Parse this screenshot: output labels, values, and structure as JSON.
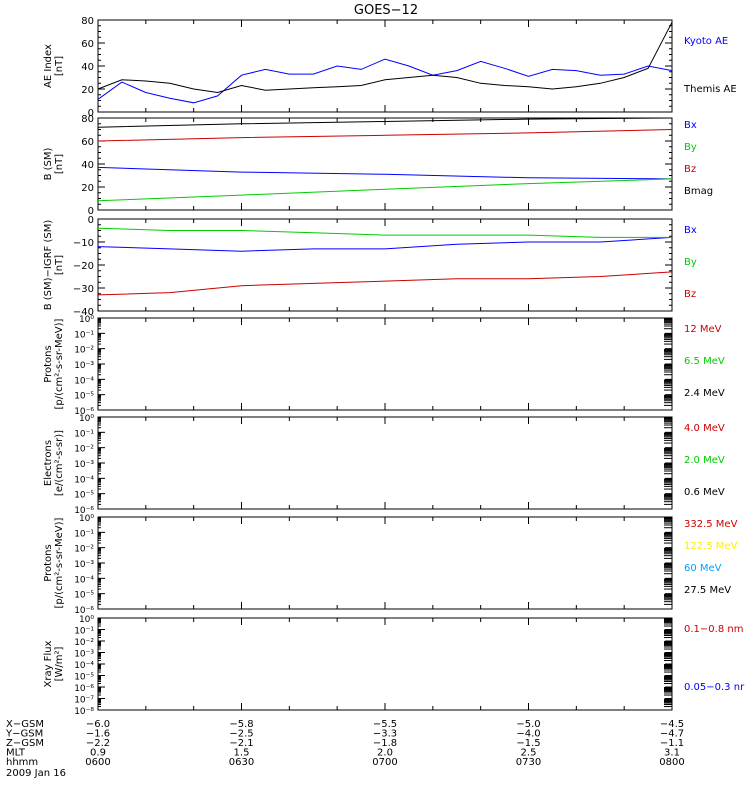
{
  "title": "GOES−12",
  "x_range": [
    "0600",
    "0800"
  ],
  "x_tick_labels": [
    "0600",
    "0630",
    "0700",
    "0730",
    "0800"
  ],
  "orbit_rows": [
    {
      "label": "X−GSM",
      "values": [
        "−6.0",
        "−5.8",
        "−5.5",
        "−5.0",
        "−4.5"
      ]
    },
    {
      "label": "Y−GSM",
      "values": [
        "−1.6",
        "−2.5",
        "−3.3",
        "−4.0",
        "−4.7"
      ]
    },
    {
      "label": "Z−GSM",
      "values": [
        "−2.2",
        "−2.1",
        "−1.8",
        "−1.5",
        "−1.1"
      ]
    },
    {
      "label": "MLT",
      "values": [
        "0.9",
        "1.5",
        "2.0",
        "2.5",
        "3.1"
      ]
    },
    {
      "label": "hhmm",
      "values": [
        "0600",
        "0630",
        "0700",
        "0730",
        "0800"
      ]
    }
  ],
  "date_label": "2009 Jan 16",
  "chart_data": [
    {
      "type": "line",
      "ylabel": [
        "AE Index",
        "[nT]"
      ],
      "ylim": [
        0,
        80
      ],
      "y_ticks": [
        0,
        20,
        40,
        60,
        80
      ],
      "x": [
        "0600",
        "0605",
        "0610",
        "0615",
        "0620",
        "0625",
        "0630",
        "0635",
        "0640",
        "0645",
        "0650",
        "0655",
        "0700",
        "0705",
        "0710",
        "0715",
        "0720",
        "0725",
        "0730",
        "0735",
        "0740",
        "0745",
        "0750",
        "0755",
        "0800"
      ],
      "series": [
        {
          "name": "Kyoto AE",
          "color": "#0000ff",
          "values": [
            11,
            26,
            17,
            12,
            8,
            14,
            32,
            37,
            33,
            33,
            40,
            37,
            46,
            40,
            32,
            36,
            44,
            38,
            31,
            37,
            36,
            32,
            33,
            40,
            36
          ]
        },
        {
          "name": "Themis AE",
          "color": "#000000",
          "values": [
            20,
            28,
            27,
            25,
            20,
            17,
            23,
            19,
            20,
            21,
            22,
            23,
            28,
            30,
            32,
            30,
            25,
            23,
            22,
            20,
            22,
            25,
            30,
            38,
            78
          ]
        }
      ]
    },
    {
      "type": "line",
      "ylabel": [
        "B (SM)",
        "[nT]"
      ],
      "ylim": [
        0,
        80
      ],
      "y_ticks": [
        0,
        20,
        40,
        60,
        80
      ],
      "x": [
        "0600",
        "0630",
        "0700",
        "0730",
        "0800"
      ],
      "series": [
        {
          "name": "Bx",
          "color": "#0000ff",
          "values": [
            37,
            33,
            31,
            28,
            27
          ]
        },
        {
          "name": "By",
          "color": "#00cc00",
          "values": [
            8,
            13,
            18,
            23,
            27
          ]
        },
        {
          "name": "Bz",
          "color": "#cc0000",
          "values": [
            60,
            63,
            65,
            67,
            70
          ]
        },
        {
          "name": "Bmag",
          "color": "#000000",
          "values": [
            72,
            75,
            77,
            79,
            81
          ]
        }
      ]
    },
    {
      "type": "line",
      "ylabel": [
        "B (SM)−IGRF (SM)",
        "[nT]"
      ],
      "ylim": [
        -40,
        0
      ],
      "y_ticks": [
        -40,
        -30,
        -20,
        -10,
        0
      ],
      "x": [
        "0600",
        "0615",
        "0630",
        "0645",
        "0700",
        "0715",
        "0730",
        "0745",
        "0800"
      ],
      "series": [
        {
          "name": "Bx",
          "color": "#0000ff",
          "values": [
            -12,
            -13,
            -14,
            -13,
            -13,
            -11,
            -10,
            -10,
            -8
          ]
        },
        {
          "name": "By",
          "color": "#00cc00",
          "values": [
            -4,
            -5,
            -5,
            -6,
            -7,
            -7,
            -7,
            -8,
            -8
          ]
        },
        {
          "name": "Bz",
          "color": "#cc0000",
          "values": [
            -33,
            -32,
            -29,
            -28,
            -27,
            -26,
            -26,
            -25,
            -23
          ]
        }
      ]
    },
    {
      "type": "line",
      "ylabel": [
        "Protons",
        "[p/(cm²-s-sr-MeV)]"
      ],
      "log_scale": true,
      "ylim": [
        1e-06,
        1
      ],
      "y_ticks": [
        "10⁰",
        "10⁻¹",
        "10⁻²",
        "10⁻³",
        "10⁻⁴",
        "10⁻⁵",
        "10⁻⁶"
      ],
      "series": [
        {
          "name": "12 MeV",
          "color": "#cc0000",
          "values": []
        },
        {
          "name": "6.5 MeV",
          "color": "#00cc00",
          "values": []
        },
        {
          "name": "2.4 MeV",
          "color": "#000000",
          "values": []
        }
      ]
    },
    {
      "type": "line",
      "ylabel": [
        "Electrons",
        "[e/(cm²-s-sr)]"
      ],
      "log_scale": true,
      "ylim": [
        1e-06,
        1
      ],
      "y_ticks": [
        "10⁰",
        "10⁻¹",
        "10⁻²",
        "10⁻³",
        "10⁻⁴",
        "10⁻⁵",
        "10⁻⁶"
      ],
      "series": [
        {
          "name": "4.0 MeV",
          "color": "#cc0000",
          "values": []
        },
        {
          "name": "2.0 MeV",
          "color": "#00cc00",
          "values": []
        },
        {
          "name": "0.6 MeV",
          "color": "#000000",
          "values": []
        }
      ]
    },
    {
      "type": "line",
      "ylabel": [
        "Protons",
        "[p/(cm²-s-sr-MeV)]"
      ],
      "log_scale": true,
      "ylim": [
        1e-06,
        1
      ],
      "y_ticks": [
        "10⁰",
        "10⁻¹",
        "10⁻²",
        "10⁻³",
        "10⁻⁴",
        "10⁻⁵",
        "10⁻⁶"
      ],
      "series": [
        {
          "name": "332.5 MeV",
          "color": "#cc0000",
          "values": []
        },
        {
          "name": "122.5 MeV",
          "color": "#ffee00",
          "values": []
        },
        {
          "name": "60 MeV",
          "color": "#00a0ff",
          "values": []
        },
        {
          "name": "27.5 MeV",
          "color": "#000000",
          "values": []
        }
      ]
    },
    {
      "type": "line",
      "ylabel": [
        "Xray Flux",
        "[W/m²]"
      ],
      "log_scale": true,
      "ylim": [
        1e-08,
        1
      ],
      "y_ticks": [
        "10⁰",
        "10⁻¹",
        "10⁻²",
        "10⁻³",
        "10⁻⁴",
        "10⁻⁵",
        "10⁻⁶",
        "10⁻⁷",
        "10⁻⁸"
      ],
      "series": [
        {
          "name": "0.1−0.8 nm",
          "color": "#cc0000",
          "values": []
        },
        {
          "name": "0.05−0.3 nr",
          "color": "#0000ff",
          "values": []
        }
      ]
    }
  ]
}
